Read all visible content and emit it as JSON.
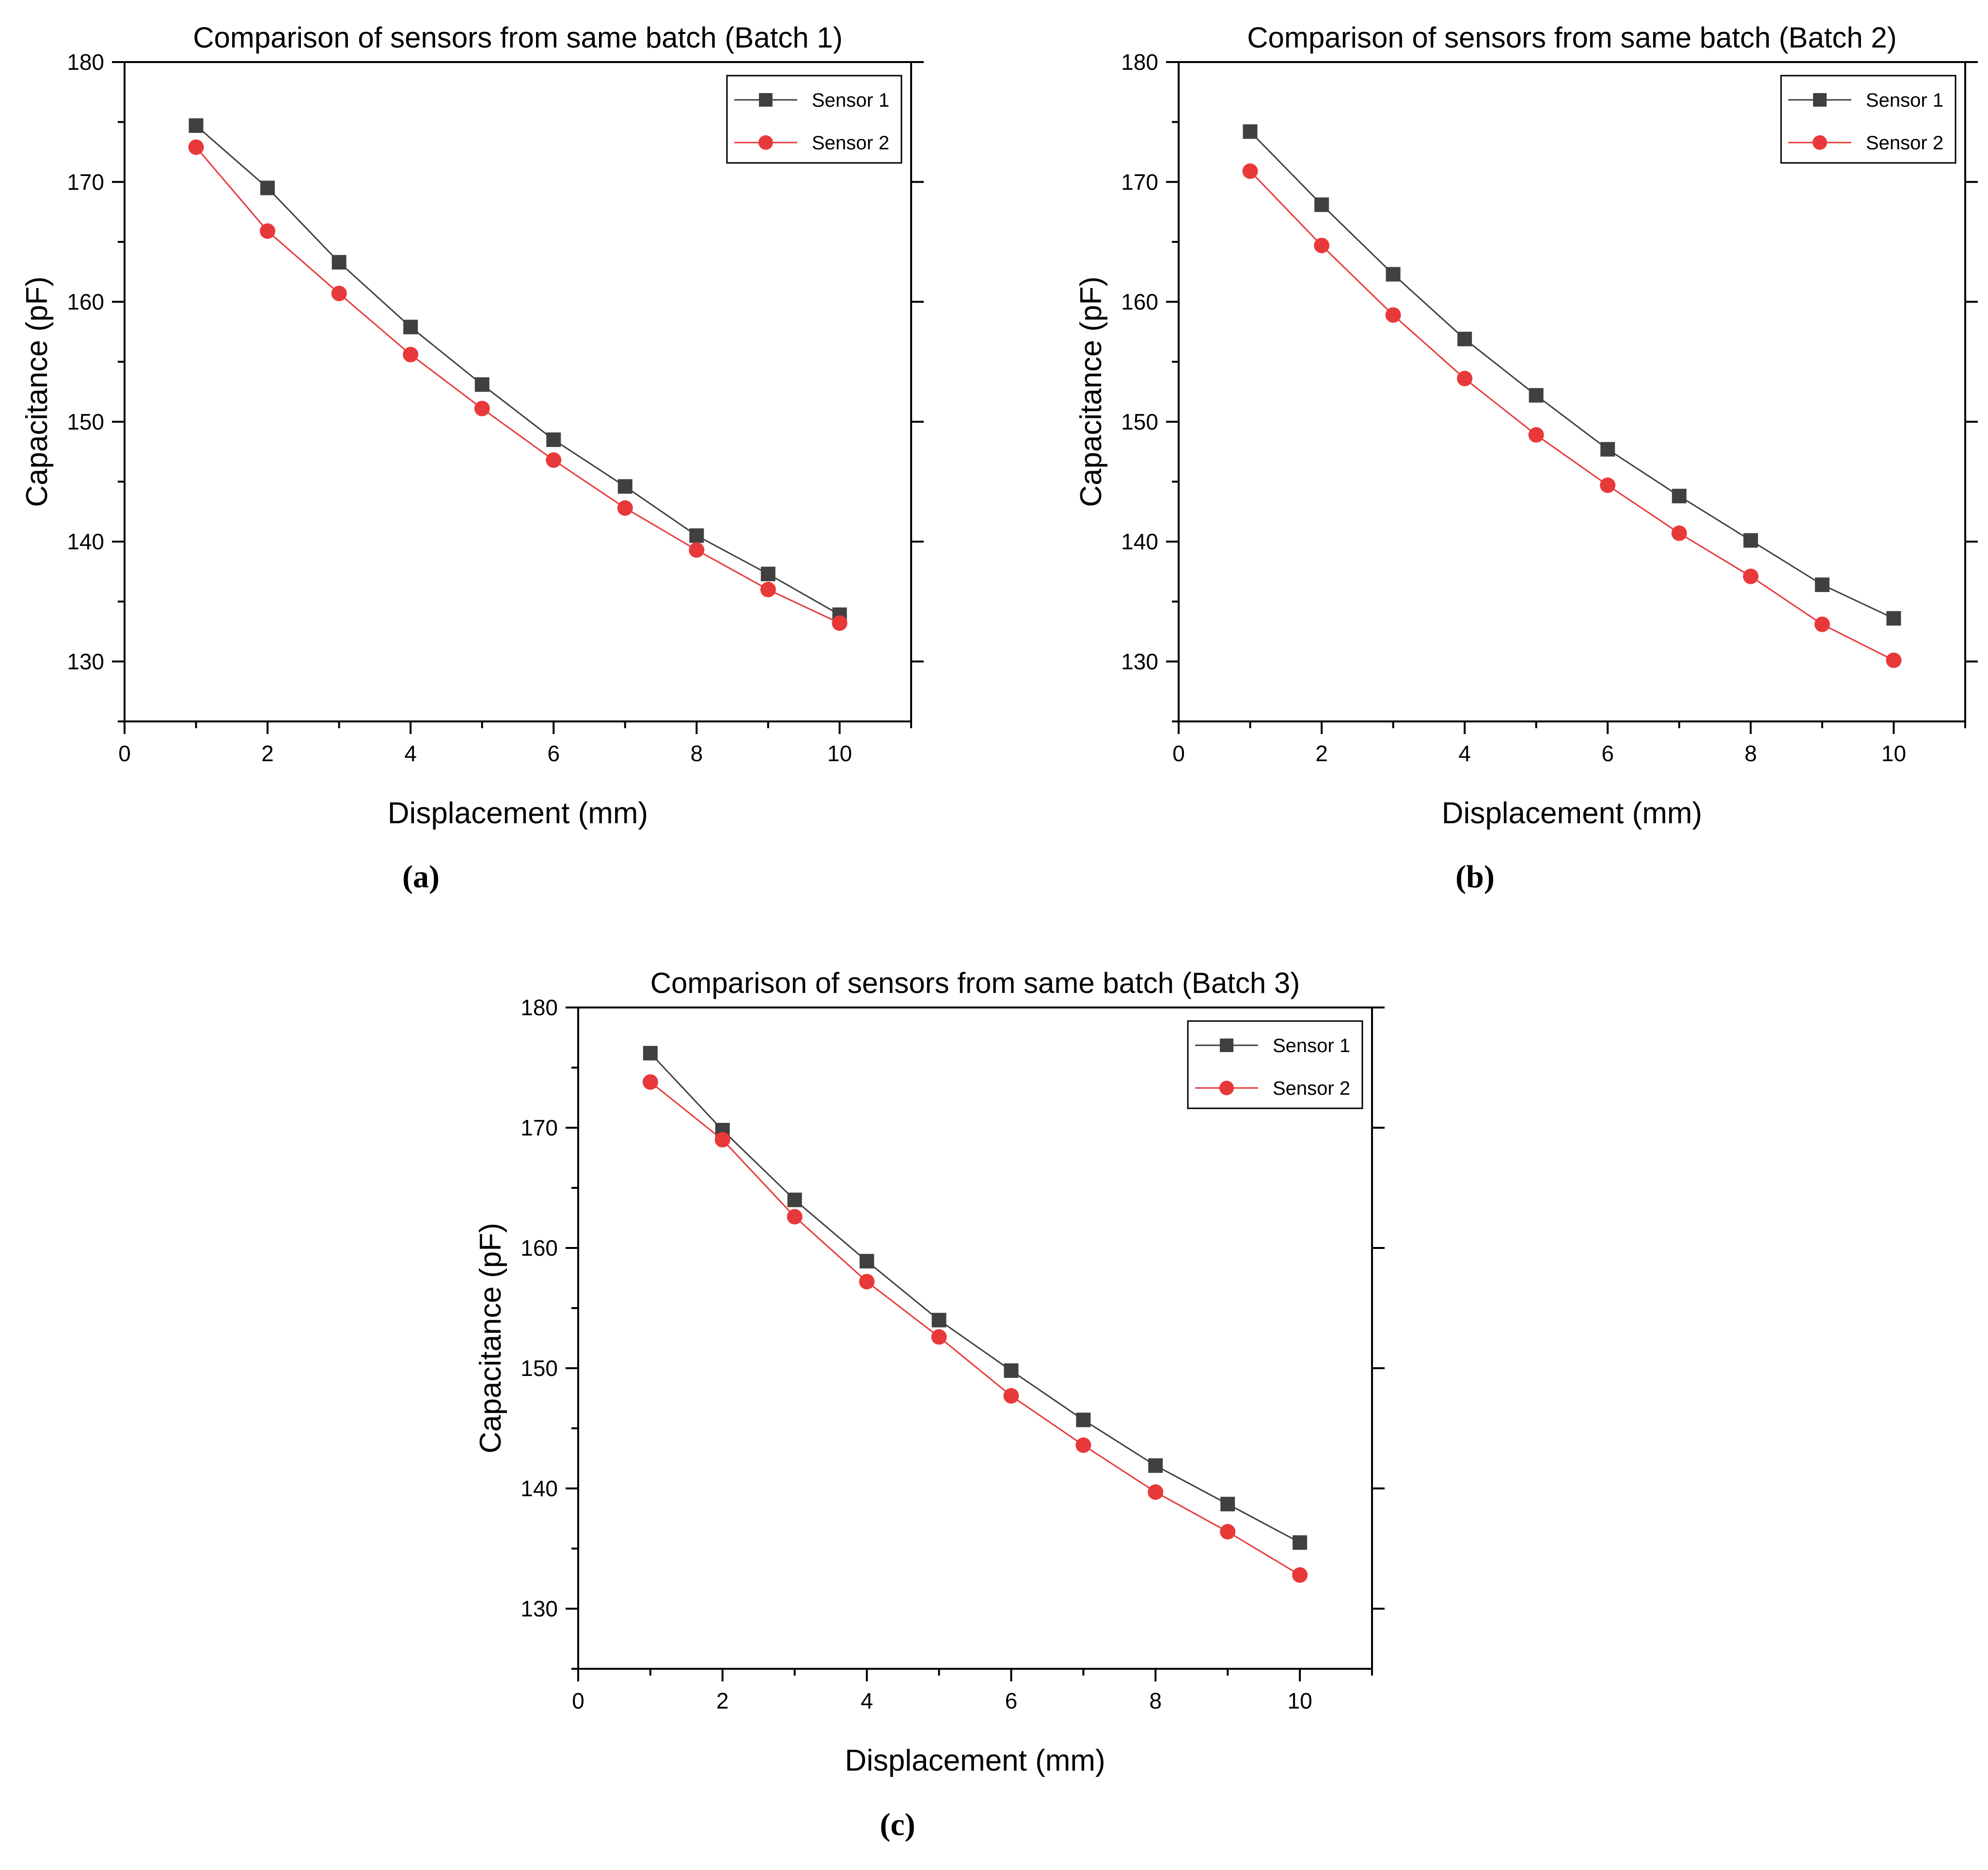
{
  "colors": {
    "sensor1": "#404040",
    "sensor2": "#e8393a",
    "axis": "#000000"
  },
  "chart_data": [
    {
      "type": "line",
      "panel": "a",
      "caption": "(a)",
      "title": "Comparison of sensors from same batch (Batch 1)",
      "xlabel": "Displacement (mm)",
      "ylabel": "Capacitance (pF)",
      "xlim": [
        0,
        11
      ],
      "ylim": [
        125,
        180
      ],
      "xticks": [
        0,
        2,
        4,
        6,
        8,
        10
      ],
      "yticks": [
        130,
        140,
        150,
        160,
        170,
        180
      ],
      "legend_position": "top-right",
      "x": [
        1,
        2,
        3,
        4,
        5,
        6,
        7,
        8,
        9,
        10
      ],
      "series": [
        {
          "name": "Sensor 1",
          "marker": "square",
          "values": [
            174.7,
            169.5,
            163.3,
            157.9,
            153.1,
            148.5,
            144.6,
            140.5,
            137.3,
            133.9
          ]
        },
        {
          "name": "Sensor 2",
          "marker": "circle",
          "values": [
            172.9,
            165.9,
            160.7,
            155.6,
            151.1,
            146.8,
            142.8,
            139.3,
            136.0,
            133.2
          ]
        }
      ]
    },
    {
      "type": "line",
      "panel": "b",
      "caption": "(b)",
      "title": "Comparison of sensors from same batch (Batch 2)",
      "xlabel": "Displacement (mm)",
      "ylabel": "Capacitance (pF)",
      "xlim": [
        0,
        11
      ],
      "ylim": [
        125,
        180
      ],
      "xticks": [
        0,
        2,
        4,
        6,
        8,
        10
      ],
      "yticks": [
        130,
        140,
        150,
        160,
        170,
        180
      ],
      "legend_position": "top-right",
      "x": [
        1,
        2,
        3,
        4,
        5,
        6,
        7,
        8,
        9,
        10
      ],
      "series": [
        {
          "name": "Sensor 1",
          "marker": "square",
          "values": [
            174.2,
            168.1,
            162.3,
            156.9,
            152.2,
            147.7,
            143.8,
            140.1,
            136.4,
            133.6
          ]
        },
        {
          "name": "Sensor 2",
          "marker": "circle",
          "values": [
            170.9,
            164.7,
            158.9,
            153.6,
            148.9,
            144.7,
            140.7,
            137.1,
            133.1,
            130.1
          ]
        }
      ]
    },
    {
      "type": "line",
      "panel": "c",
      "caption": "(c)",
      "title": "Comparison of sensors from same batch (Batch 3)",
      "xlabel": "Displacement (mm)",
      "ylabel": "Capacitance (pF)",
      "xlim": [
        0,
        11
      ],
      "ylim": [
        125,
        180
      ],
      "xticks": [
        0,
        2,
        4,
        6,
        8,
        10
      ],
      "yticks": [
        130,
        140,
        150,
        160,
        170,
        180
      ],
      "legend_position": "top-right",
      "x": [
        1,
        2,
        3,
        4,
        5,
        6,
        7,
        8,
        9,
        10
      ],
      "series": [
        {
          "name": "Sensor 1",
          "marker": "square",
          "values": [
            176.2,
            169.8,
            164.0,
            158.9,
            154.0,
            149.8,
            145.7,
            141.9,
            138.7,
            135.5
          ]
        },
        {
          "name": "Sensor 2",
          "marker": "circle",
          "values": [
            173.8,
            169.0,
            162.6,
            157.2,
            152.6,
            147.7,
            143.6,
            139.7,
            136.4,
            132.8
          ]
        }
      ]
    }
  ]
}
